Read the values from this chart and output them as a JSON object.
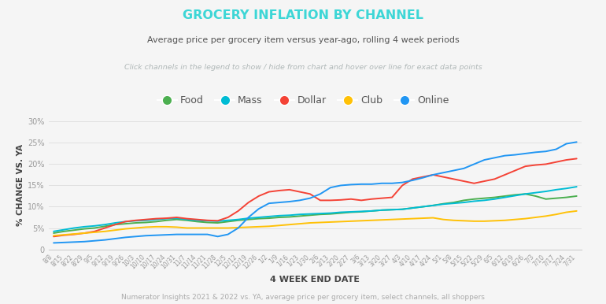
{
  "title": "GROCERY INFLATION BY CHANNEL",
  "subtitle": "Average price per grocery item versus year-ago, rolling 4 week periods",
  "interactive_note": "Click channels in the legend to show / hide from chart and hover over line for exact data points",
  "xlabel": "4 WEEK END DATE",
  "ylabel": "% CHANGE VS. YA",
  "footnote": "Numerator Insights 2021 & 2022 vs. YA, average price per grocery item, select channels, all shoppers",
  "title_color": "#3dd6d6",
  "subtitle_color": "#555555",
  "note_color": "#b0b8b8",
  "footnote_color": "#aaaaaa",
  "ylabel_color": "#444444",
  "xlabel_color": "#444444",
  "background_color": "#f5f5f5",
  "ylim": [
    0,
    0.3
  ],
  "yticks": [
    0,
    0.05,
    0.1,
    0.15,
    0.2,
    0.25,
    0.3
  ],
  "ytick_labels": [
    "0",
    "5%",
    "10%",
    "15%",
    "20%",
    "25%",
    "30%"
  ],
  "x_labels": [
    "8/8",
    "8/15",
    "8/22",
    "8/29",
    "9/5",
    "9/12",
    "9/19",
    "9/26",
    "10/3",
    "10/10",
    "10/17",
    "10/24",
    "10/31",
    "11/7",
    "11/14",
    "11/21",
    "11/28",
    "12/5",
    "12/12",
    "12/19",
    "12/26",
    "1/2",
    "1/9",
    "1/16",
    "1/23",
    "1/30",
    "2/6",
    "2/13",
    "2/20",
    "2/27",
    "3/6",
    "3/13",
    "3/20",
    "3/27",
    "4/3",
    "4/10",
    "4/17",
    "4/24",
    "5/1",
    "5/8",
    "5/15",
    "5/22",
    "5/29",
    "6/5",
    "6/12",
    "6/19",
    "6/26",
    "7/3",
    "7/10",
    "7/17",
    "7/24",
    "7/31"
  ],
  "series": {
    "Food": {
      "color": "#4caf50",
      "values": [
        0.038,
        0.042,
        0.045,
        0.048,
        0.05,
        0.054,
        0.058,
        0.06,
        0.062,
        0.063,
        0.065,
        0.068,
        0.07,
        0.068,
        0.065,
        0.063,
        0.062,
        0.065,
        0.068,
        0.07,
        0.072,
        0.073,
        0.075,
        0.076,
        0.078,
        0.08,
        0.082,
        0.083,
        0.085,
        0.087,
        0.088,
        0.09,
        0.092,
        0.093,
        0.094,
        0.097,
        0.1,
        0.103,
        0.107,
        0.11,
        0.115,
        0.118,
        0.12,
        0.122,
        0.125,
        0.128,
        0.13,
        0.125,
        0.118,
        0.12,
        0.122,
        0.125
      ]
    },
    "Mass": {
      "color": "#00bcd4",
      "values": [
        0.042,
        0.046,
        0.05,
        0.053,
        0.055,
        0.058,
        0.062,
        0.065,
        0.067,
        0.068,
        0.07,
        0.072,
        0.073,
        0.07,
        0.068,
        0.067,
        0.066,
        0.068,
        0.07,
        0.073,
        0.075,
        0.077,
        0.079,
        0.08,
        0.082,
        0.083,
        0.084,
        0.085,
        0.087,
        0.088,
        0.089,
        0.09,
        0.092,
        0.093,
        0.094,
        0.097,
        0.1,
        0.103,
        0.106,
        0.108,
        0.11,
        0.113,
        0.115,
        0.118,
        0.122,
        0.126,
        0.13,
        0.133,
        0.136,
        0.14,
        0.143,
        0.147
      ]
    },
    "Dollar": {
      "color": "#f44336",
      "values": [
        0.03,
        0.033,
        0.035,
        0.038,
        0.042,
        0.05,
        0.058,
        0.065,
        0.068,
        0.07,
        0.072,
        0.073,
        0.075,
        0.072,
        0.07,
        0.068,
        0.067,
        0.075,
        0.09,
        0.11,
        0.125,
        0.135,
        0.138,
        0.14,
        0.135,
        0.13,
        0.115,
        0.115,
        0.116,
        0.118,
        0.115,
        0.118,
        0.12,
        0.122,
        0.15,
        0.165,
        0.17,
        0.175,
        0.17,
        0.165,
        0.16,
        0.155,
        0.16,
        0.165,
        0.175,
        0.185,
        0.195,
        0.198,
        0.2,
        0.205,
        0.21,
        0.213
      ]
    },
    "Club": {
      "color": "#ffc107",
      "values": [
        0.032,
        0.034,
        0.036,
        0.038,
        0.04,
        0.042,
        0.045,
        0.048,
        0.05,
        0.052,
        0.053,
        0.053,
        0.052,
        0.05,
        0.05,
        0.05,
        0.05,
        0.05,
        0.051,
        0.052,
        0.053,
        0.054,
        0.056,
        0.058,
        0.06,
        0.062,
        0.063,
        0.064,
        0.065,
        0.066,
        0.067,
        0.068,
        0.069,
        0.07,
        0.071,
        0.072,
        0.073,
        0.074,
        0.07,
        0.068,
        0.067,
        0.066,
        0.066,
        0.067,
        0.068,
        0.07,
        0.072,
        0.075,
        0.078,
        0.082,
        0.087,
        0.09
      ]
    },
    "Online": {
      "color": "#2196f3",
      "values": [
        0.015,
        0.016,
        0.017,
        0.018,
        0.02,
        0.022,
        0.025,
        0.028,
        0.03,
        0.032,
        0.033,
        0.034,
        0.035,
        0.035,
        0.035,
        0.035,
        0.03,
        0.035,
        0.05,
        0.075,
        0.095,
        0.108,
        0.11,
        0.112,
        0.115,
        0.12,
        0.13,
        0.145,
        0.15,
        0.152,
        0.153,
        0.153,
        0.155,
        0.155,
        0.157,
        0.162,
        0.168,
        0.175,
        0.18,
        0.185,
        0.19,
        0.2,
        0.21,
        0.215,
        0.22,
        0.222,
        0.225,
        0.228,
        0.23,
        0.235,
        0.248,
        0.252
      ]
    }
  },
  "legend_entries": [
    "Food",
    "Mass",
    "Dollar",
    "Club",
    "Online"
  ],
  "legend_colors": [
    "#4caf50",
    "#00bcd4",
    "#f44336",
    "#ffc107",
    "#2196f3"
  ]
}
